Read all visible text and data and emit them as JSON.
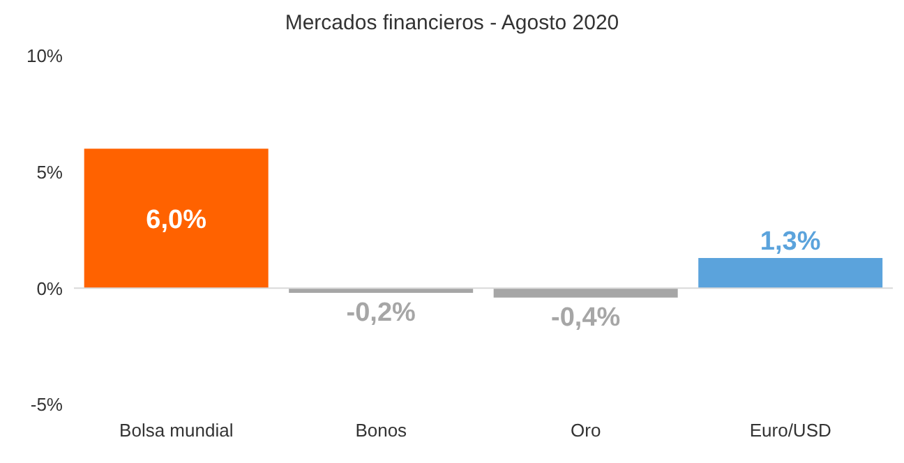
{
  "chart_data": {
    "type": "bar",
    "title": "Mercados financieros - Agosto 2020",
    "categories": [
      "Bolsa mundial",
      "Bonos",
      "Oro",
      "Euro/USD"
    ],
    "values": [
      6.0,
      -0.2,
      -0.4,
      1.3
    ],
    "colors": [
      "#ff6200",
      "#a6a6a6",
      "#a6a6a6",
      "#5ba3dc"
    ],
    "value_labels": [
      "6,0%",
      "-0,2%",
      "-0,4%",
      "1,3%"
    ],
    "ylim": [
      -5,
      10
    ],
    "yticks": [
      {
        "value": 10,
        "label": "10%"
      },
      {
        "value": 5,
        "label": "5%"
      },
      {
        "value": 0,
        "label": "0%"
      },
      {
        "value": -5,
        "label": "-5%"
      }
    ],
    "ref_lines": [
      {
        "axis": "y",
        "value": 0,
        "color": "#d9d9d9"
      }
    ]
  }
}
